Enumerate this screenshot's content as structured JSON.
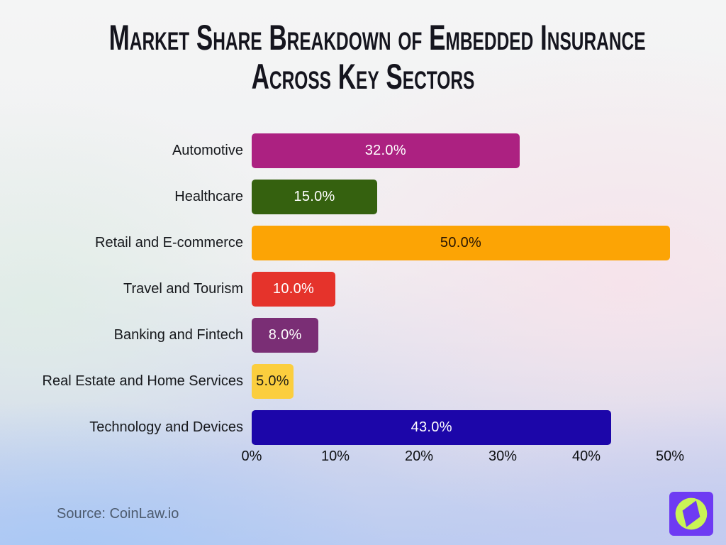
{
  "title": {
    "lines": [
      "Market Share Breakdown of Embedded Insurance",
      "Across Key Sectors"
    ],
    "color": "#15151e"
  },
  "source": {
    "label": "Source: CoinLaw.io",
    "color": "#4d5b6e"
  },
  "logo": {
    "name": "coinlaw-compass-logo",
    "bg_color": "#6e3bf3",
    "circle_color": "#c9f455",
    "needle_color": "#6e3bf3"
  },
  "chart_data": {
    "type": "bar",
    "orientation": "horizontal",
    "title": "Market Share Breakdown of Embedded Insurance Across Key Sectors",
    "xlabel": "",
    "ylabel": "",
    "xlim": [
      0,
      50
    ],
    "x_ticks": [
      "0%",
      "10%",
      "20%",
      "30%",
      "40%",
      "50%"
    ],
    "x_tick_values": [
      0,
      10,
      20,
      30,
      40,
      50
    ],
    "grid": false,
    "legend": false,
    "categories": [
      "Automotive",
      "Healthcare",
      "Retail and E-commerce",
      "Travel and Tourism",
      "Banking and Fintech",
      "Real Estate and Home Services",
      "Technology and Devices"
    ],
    "values": [
      32.0,
      15.0,
      50.0,
      10.0,
      8.0,
      5.0,
      43.0
    ],
    "value_labels": [
      "32.0%",
      "15.0%",
      "50.0%",
      "10.0%",
      "8.0%",
      "5.0%",
      "43.0%"
    ],
    "bar_colors": [
      "#ac2181",
      "#35610f",
      "#fca405",
      "#e5332b",
      "#7a2e75",
      "#fbce3e",
      "#1c06a9"
    ],
    "value_label_colors": [
      "#ffffff",
      "#ffffff",
      "#261403",
      "#ffffff",
      "#ffffff",
      "#1f1d16",
      "#ffffff"
    ]
  }
}
